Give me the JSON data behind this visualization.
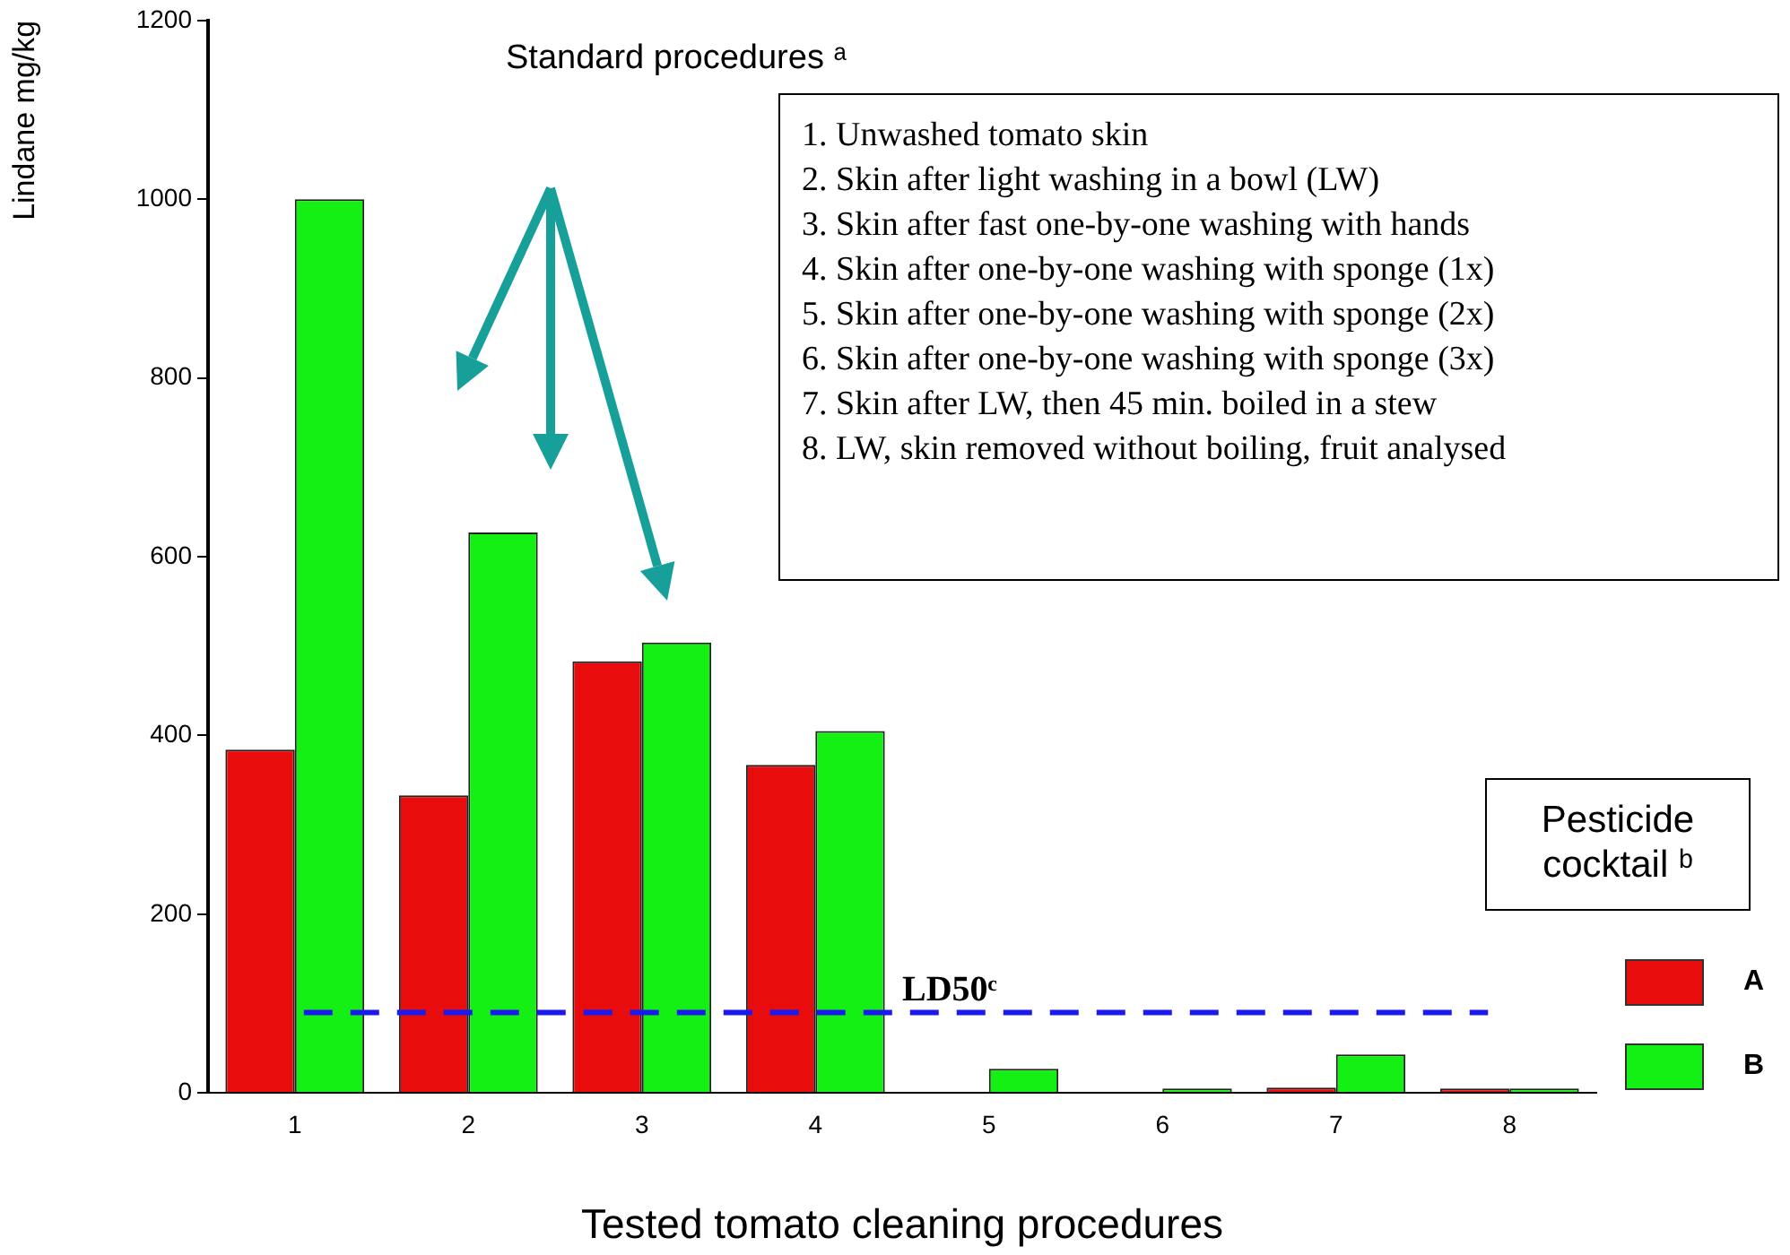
{
  "chart_data": {
    "type": "bar",
    "xlabel": "Tested tomato cleaning procedures",
    "ylabel": "Lindane mg/kg",
    "categories": [
      "1",
      "2",
      "3",
      "4",
      "5",
      "6",
      "7",
      "8"
    ],
    "series": [
      {
        "name": "A",
        "color": "#e80c0c",
        "values": [
          384,
          333,
          483,
          367,
          0,
          0,
          6,
          5
        ]
      },
      {
        "name": "B",
        "color": "#14f014",
        "values": [
          1000,
          627,
          504,
          405,
          27,
          5,
          43,
          5
        ]
      }
    ],
    "ylim": [
      0,
      1200
    ],
    "yticks": [
      0,
      200,
      400,
      600,
      800,
      1000,
      1200
    ],
    "grid": false,
    "legend": "bottom right",
    "legend_title": "Pesticide cocktail ᵇ",
    "ref_lines": [
      {
        "axis": "y",
        "value": 90,
        "label": "LD50ᶜ",
        "color": "#1a1aee",
        "line_style": "dashed"
      }
    ],
    "annotations": [
      "Standard procedures ᵃ",
      "1. Unwashed tomato skin",
      "2. Skin after light washing in a bowl (LW)",
      "3. Skin after fast one-by-one washing with hands",
      "4. Skin after one-by-one washing with sponge (1x)",
      "5. Skin after one-by-one washing with sponge (2x)",
      "6. Skin after one-by-one washing with sponge (3x)",
      "7. Skin after LW, then 45 min. boiled in a stew",
      "8. LW, skin removed without boiling, fruit analysed"
    ]
  }
}
